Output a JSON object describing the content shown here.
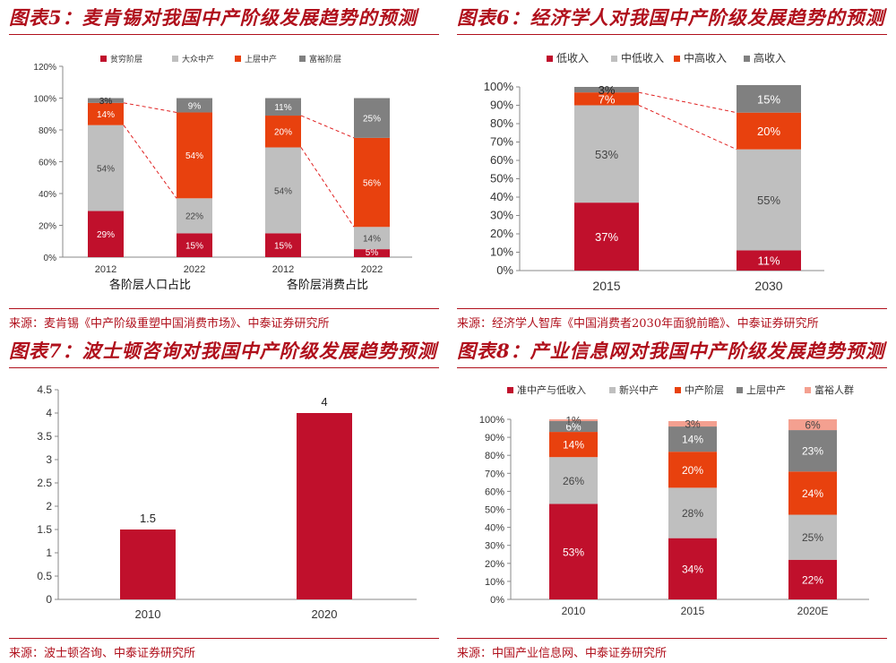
{
  "panels": {
    "p5": {
      "title": "图表5：麦肯锡对我国中产阶级发展趋势的预测",
      "source": "来源：麦肯锡《中产阶级重塑中国消费市场》、中泰证券研究所"
    },
    "p6": {
      "title": "图表6：经济学人对我国中产阶级发展趋势的预测",
      "source": "来源：经济学人智库《中国消费者2030年面貌前瞻》、中泰证券研究所"
    },
    "p7": {
      "title": "图表7：波士顿咨询对我国中产阶级发展趋势预测",
      "source": "来源：波士顿咨询、中泰证券研究所"
    },
    "p8": {
      "title": "图表8：产业信息网对我国中产阶级发展趋势预测",
      "source": "来源：中国产业信息网、中泰证券研究所"
    }
  },
  "colors": {
    "red": "#c0102c",
    "gray": "#bfbfbf",
    "orange": "#e8410e",
    "dark": "#808080",
    "pink": "#f4a090"
  },
  "chart_data": [
    {
      "id": "p5",
      "type": "bar",
      "stacked": true,
      "grid": false,
      "legend": "top",
      "categories": [
        "2012",
        "2022",
        "2012",
        "2022"
      ],
      "groups": [
        "各阶层人口占比",
        "各阶层消费占比"
      ],
      "ylim": [
        0,
        120
      ],
      "yticks": [
        "0%",
        "20%",
        "40%",
        "60%",
        "80%",
        "100%",
        "120%"
      ],
      "series": [
        {
          "name": "贫穷阶层",
          "values": [
            29,
            15,
            15,
            5
          ],
          "labels": [
            "29%",
            "15%",
            "15%",
            "5%"
          ]
        },
        {
          "name": "大众中产",
          "values": [
            54,
            22,
            54,
            14
          ],
          "labels": [
            "54%",
            "22%",
            "54%",
            "14%"
          ]
        },
        {
          "name": "上层中产",
          "values": [
            14,
            54,
            20,
            56
          ],
          "labels": [
            "14%",
            "54%",
            "20%",
            "56%"
          ]
        },
        {
          "name": "富裕阶层",
          "values": [
            3,
            9,
            11,
            25
          ],
          "labels": [
            "3%",
            "9%",
            "11%",
            "25%"
          ]
        }
      ]
    },
    {
      "id": "p6",
      "type": "bar",
      "stacked": true,
      "grid": false,
      "legend": "top",
      "categories": [
        "2015",
        "2030"
      ],
      "ylim": [
        0,
        100
      ],
      "yticks": [
        "0%",
        "10%",
        "20%",
        "30%",
        "40%",
        "50%",
        "60%",
        "70%",
        "80%",
        "90%",
        "100%"
      ],
      "series": [
        {
          "name": "低收入",
          "values": [
            37,
            11
          ],
          "labels": [
            "37%",
            "11%"
          ]
        },
        {
          "name": "中低收入",
          "values": [
            53,
            55
          ],
          "labels": [
            "53%",
            "55%"
          ]
        },
        {
          "name": "中高收入",
          "values": [
            7,
            20
          ],
          "labels": [
            "7%",
            "20%"
          ]
        },
        {
          "name": "高收入",
          "values": [
            3,
            15
          ],
          "labels": [
            "3%",
            "15%"
          ]
        }
      ]
    },
    {
      "id": "p7",
      "type": "bar",
      "grid": false,
      "categories": [
        "2010",
        "2020"
      ],
      "values": [
        1.5,
        4
      ],
      "labels": [
        "1.5",
        "4"
      ],
      "ylim": [
        0,
        4.5
      ],
      "yticks": [
        "0",
        "0.5",
        "1",
        "1.5",
        "2",
        "2.5",
        "3",
        "3.5",
        "4",
        "4.5"
      ]
    },
    {
      "id": "p8",
      "type": "bar",
      "stacked": true,
      "grid": false,
      "legend": "top",
      "categories": [
        "2010",
        "2015",
        "2020E"
      ],
      "ylim": [
        0,
        100
      ],
      "yticks": [
        "0%",
        "10%",
        "20%",
        "30%",
        "40%",
        "50%",
        "60%",
        "70%",
        "80%",
        "90%",
        "100%"
      ],
      "series": [
        {
          "name": "准中产与低收入",
          "values": [
            53,
            34,
            22
          ],
          "labels": [
            "53%",
            "34%",
            "22%"
          ]
        },
        {
          "name": "新兴中产",
          "values": [
            26,
            28,
            25
          ],
          "labels": [
            "26%",
            "28%",
            "25%"
          ]
        },
        {
          "name": "中产阶层",
          "values": [
            14,
            20,
            24
          ],
          "labels": [
            "14%",
            "20%",
            "24%"
          ]
        },
        {
          "name": "上层中产",
          "values": [
            6,
            14,
            23
          ],
          "labels": [
            "6%",
            "14%",
            "23%"
          ]
        },
        {
          "name": "富裕人群",
          "values": [
            1,
            3,
            6
          ],
          "labels": [
            "1%",
            "3%",
            "6%"
          ]
        }
      ]
    }
  ]
}
